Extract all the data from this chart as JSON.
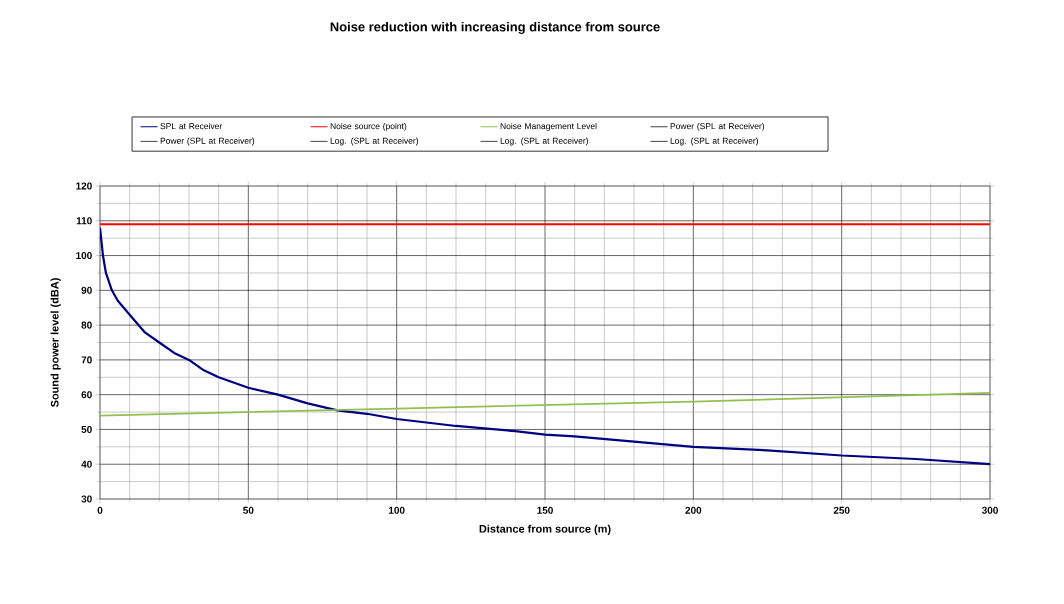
{
  "chart_data": {
    "type": "line",
    "title": "Noise reduction with increasing distance from source",
    "xlabel": "Distance from source (m)",
    "ylabel": "Sound power level (dBA)",
    "xlim": [
      0,
      300
    ],
    "xticks": [
      0,
      50,
      100,
      150,
      200,
      250,
      300
    ],
    "ylim": [
      30,
      120
    ],
    "yticks": [
      30,
      40,
      50,
      60,
      70,
      80,
      90,
      100,
      110,
      120
    ],
    "grid": true,
    "legend": "top",
    "series": [
      {
        "name": "SPL at Receiver",
        "color": "#000080",
        "x": [
          0,
          1,
          2,
          4,
          6,
          8,
          10,
          15,
          20,
          25,
          30,
          35,
          40,
          50,
          60,
          70,
          80,
          90,
          100,
          120,
          140,
          150,
          160,
          180,
          200,
          225,
          250,
          275,
          300
        ],
        "values": [
          108,
          100,
          95,
          90,
          87,
          85,
          83,
          78,
          75,
          72,
          70,
          67,
          65,
          62,
          60,
          57.5,
          55.5,
          54.5,
          53,
          51,
          49.5,
          48.5,
          48,
          46.5,
          45,
          44,
          42.5,
          41.5,
          40
        ]
      },
      {
        "name": "Noise source (point)",
        "color": "#ff0000",
        "x": [
          0,
          300
        ],
        "values": [
          109,
          109
        ]
      },
      {
        "name": "Noise Management Level",
        "color": "#92c050",
        "x": [
          0,
          100,
          200,
          300
        ],
        "values": [
          54,
          56,
          58,
          60.5
        ]
      },
      {
        "name": "Power (SPL at Receiver)",
        "color": "#404040",
        "values": [
          null
        ]
      },
      {
        "name": "Power (SPL at Receiver)",
        "color": "#404040",
        "values": [
          null
        ]
      },
      {
        "name": "Log. (SPL at Receiver)",
        "color": "#404040",
        "values": [
          null
        ]
      },
      {
        "name": "Log. (SPL at Receiver)",
        "color": "#404040",
        "values": [
          null
        ]
      },
      {
        "name": "Log. (SPL at Receiver)",
        "color": "#404040",
        "values": [
          null
        ]
      }
    ]
  }
}
